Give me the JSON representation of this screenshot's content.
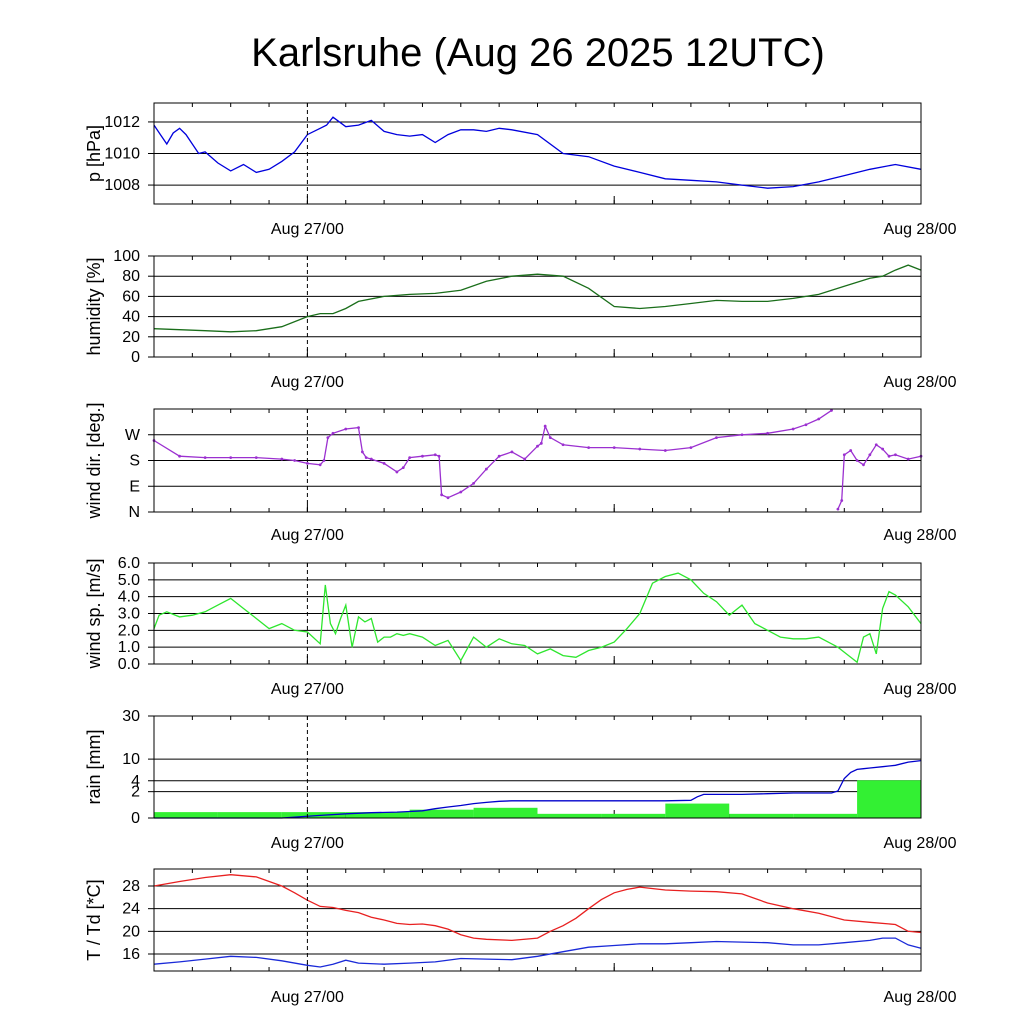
{
  "title": "Karlsruhe (Aug 26 2025 12UTC)",
  "x_ticks": [
    "Aug 27/00",
    "Aug 28/00"
  ],
  "colors": {
    "pressure": "#0000dd",
    "humidity": "#1a6e1a",
    "wind_dir": "#9b30d0",
    "wind_speed": "#2ee62e",
    "rain_bar": "#33f033",
    "rain_line": "#0000cc",
    "temperature": "#e82020",
    "dewpoint": "#1a2ad8"
  },
  "chart_data": [
    {
      "id": "pressure",
      "type": "line",
      "ylabel": "p [hPa]",
      "ylim": [
        1006.8,
        1013.2
      ],
      "yticks": [
        {
          "v": 1008,
          "label": "1008"
        },
        {
          "v": 1010,
          "label": "1010"
        },
        {
          "v": 1012,
          "label": "1012"
        }
      ],
      "series": [
        {
          "name": "pressure",
          "color": "pressure",
          "x": [
            0,
            0.5,
            1,
            1.5,
            2,
            2.5,
            3,
            3.5,
            4,
            5,
            6,
            7,
            8,
            9,
            10,
            11,
            12,
            13,
            13.5,
            14,
            15,
            16,
            17,
            18,
            19,
            20,
            21,
            22,
            23,
            24,
            25,
            26,
            27,
            28,
            30,
            32,
            34,
            36,
            38,
            40,
            42,
            44,
            46,
            48,
            50,
            52,
            54,
            56,
            58,
            60
          ],
          "y": [
            1011.8,
            1011.2,
            1010.6,
            1011.3,
            1011.6,
            1011.2,
            1010.6,
            1010.0,
            1010.1,
            1009.4,
            1008.9,
            1009.3,
            1008.8,
            1009.0,
            1009.5,
            1010.1,
            1011.2,
            1011.6,
            1011.8,
            1012.3,
            1011.7,
            1011.8,
            1012.1,
            1011.4,
            1011.2,
            1011.1,
            1011.2,
            1010.7,
            1011.2,
            1011.5,
            1011.5,
            1011.4,
            1011.6,
            1011.5,
            1011.2,
            1010.0,
            1009.8,
            1009.2,
            1008.8,
            1008.4,
            1008.3,
            1008.2,
            1008.0,
            1007.8,
            1007.9,
            1008.2,
            1008.6,
            1009.0,
            1009.3,
            1009.0
          ]
        }
      ]
    },
    {
      "id": "humidity",
      "type": "line",
      "ylabel": "humidity [%]",
      "ylim": [
        0,
        100
      ],
      "yticks": [
        {
          "v": 0,
          "label": "0"
        },
        {
          "v": 20,
          "label": "20"
        },
        {
          "v": 40,
          "label": "40"
        },
        {
          "v": 60,
          "label": "60"
        },
        {
          "v": 80,
          "label": "80"
        },
        {
          "v": 100,
          "label": "100"
        }
      ],
      "series": [
        {
          "name": "humidity",
          "color": "humidity",
          "x": [
            0,
            2,
            4,
            6,
            8,
            10,
            12,
            13,
            14,
            15,
            16,
            18,
            20,
            22,
            24,
            26,
            28,
            30,
            31,
            32,
            34,
            36,
            38,
            40,
            42,
            44,
            46,
            48,
            50,
            52,
            54,
            56,
            57,
            58,
            59,
            60
          ],
          "y": [
            28,
            27,
            26,
            25,
            26,
            30,
            40,
            43,
            43,
            48,
            55,
            60,
            62,
            63,
            66,
            75,
            80,
            82,
            81,
            80,
            68,
            50,
            48,
            50,
            53,
            56,
            55,
            55,
            58,
            62,
            70,
            78,
            80,
            86,
            91,
            86
          ]
        }
      ]
    },
    {
      "id": "wind_direction",
      "type": "scatter",
      "ylabel": "wind dir. [deg.]",
      "ylim": [
        0,
        360
      ],
      "yticks": [
        {
          "v": 0,
          "label": "N"
        },
        {
          "v": 90,
          "label": "E"
        },
        {
          "v": 180,
          "label": "S"
        },
        {
          "v": 270,
          "label": "W"
        }
      ],
      "series": [
        {
          "name": "wind direction",
          "color": "wind_dir",
          "x": [
            0,
            2,
            4,
            6,
            8,
            10,
            11,
            12,
            13,
            13.3,
            13.6,
            14,
            15,
            16,
            16.3,
            16.6,
            17,
            18,
            19,
            19.5,
            20,
            21,
            22,
            22.3,
            22.5,
            23,
            24,
            25,
            26,
            27,
            28,
            29,
            30,
            30.3,
            30.6,
            31,
            32,
            34,
            36,
            38,
            40,
            42,
            44,
            46,
            48,
            50,
            51,
            52,
            53
          ],
          "y": [
            250,
            195,
            190,
            190,
            190,
            185,
            180,
            170,
            165,
            180,
            260,
            275,
            290,
            295,
            210,
            190,
            185,
            170,
            140,
            155,
            190,
            195,
            200,
            195,
            60,
            50,
            70,
            100,
            150,
            195,
            210,
            185,
            230,
            240,
            300,
            260,
            235,
            225,
            225,
            220,
            215,
            225,
            260,
            270,
            275,
            290,
            305,
            325,
            355
          ]
        },
        {
          "name": "wind direction (wrap)",
          "color": "wind_dir",
          "x": [
            53.5,
            53.8,
            54,
            54.5,
            55,
            55.5,
            56,
            56.5,
            57,
            57.5,
            58,
            59,
            60
          ],
          "y": [
            10,
            40,
            200,
            215,
            180,
            165,
            200,
            235,
            220,
            195,
            200,
            185,
            195
          ]
        }
      ]
    },
    {
      "id": "wind_speed",
      "type": "line",
      "ylabel": "wind sp. [m/s]",
      "ylim": [
        0,
        6
      ],
      "yticks": [
        {
          "v": 0,
          "label": "0.0"
        },
        {
          "v": 1,
          "label": "1.0"
        },
        {
          "v": 2,
          "label": "2.0"
        },
        {
          "v": 3,
          "label": "3.0"
        },
        {
          "v": 4,
          "label": "4.0"
        },
        {
          "v": 5,
          "label": "5.0"
        },
        {
          "v": 6,
          "label": "6.0"
        }
      ],
      "series": [
        {
          "name": "wind speed",
          "color": "wind_speed",
          "x": [
            0,
            0.4,
            1,
            2,
            3,
            4,
            5,
            6,
            7,
            8,
            9,
            10,
            11,
            12,
            13,
            13.4,
            13.8,
            14.2,
            14.6,
            15,
            15.5,
            16,
            16.5,
            17,
            17.5,
            18,
            18.5,
            19,
            19.5,
            20,
            21,
            22,
            23,
            24,
            25,
            26,
            27,
            28,
            29,
            30,
            31,
            32,
            33,
            34,
            35,
            36,
            37,
            38,
            39,
            40,
            41,
            42,
            43,
            44,
            45,
            46,
            47,
            48,
            49,
            50,
            51,
            52,
            53,
            53.5,
            54,
            54.5,
            55,
            55.5,
            56,
            56.5,
            57,
            57.5,
            58,
            59,
            60
          ],
          "y": [
            2.1,
            2.9,
            3.1,
            2.8,
            2.9,
            3.1,
            3.5,
            3.9,
            3.3,
            2.7,
            2.1,
            2.4,
            2.0,
            1.9,
            1.2,
            4.7,
            2.4,
            1.8,
            2.7,
            3.5,
            1.0,
            2.8,
            2.5,
            2.7,
            1.3,
            1.6,
            1.6,
            1.8,
            1.7,
            1.8,
            1.6,
            1.1,
            1.4,
            0.2,
            1.6,
            1.0,
            1.5,
            1.2,
            1.1,
            0.6,
            0.9,
            0.5,
            0.4,
            0.8,
            1.0,
            1.3,
            2.1,
            3.0,
            4.8,
            5.2,
            5.4,
            5.0,
            4.2,
            3.7,
            2.9,
            3.5,
            2.4,
            2.0,
            1.6,
            1.5,
            1.5,
            1.6,
            1.2,
            1.0,
            0.7,
            0.4,
            0.1,
            1.6,
            1.8,
            0.6,
            3.3,
            4.3,
            4.1,
            3.4,
            2.4
          ]
        }
      ]
    },
    {
      "id": "rain",
      "type": "bar",
      "ylabel": "rain [mm]",
      "ytransform": "sqrt",
      "ylim": [
        0,
        30
      ],
      "yticks": [
        {
          "v": 0,
          "label": "0"
        },
        {
          "v": 2,
          "label": "2"
        },
        {
          "v": 4,
          "label": "4"
        },
        {
          "v": 10,
          "label": "10"
        },
        {
          "v": 30,
          "label": "30"
        }
      ],
      "bars": [
        {
          "x0": 0,
          "x1": 5,
          "value": 0.1
        },
        {
          "x0": 5,
          "x1": 10,
          "value": 0.1
        },
        {
          "x0": 10,
          "x1": 15,
          "value": 0.1
        },
        {
          "x0": 15,
          "x1": 20,
          "value": 0.1
        },
        {
          "x0": 20,
          "x1": 25,
          "value": 0.2
        },
        {
          "x0": 25,
          "x1": 30,
          "value": 0.3
        },
        {
          "x0": 30,
          "x1": 35,
          "value": 0.05
        },
        {
          "x0": 35,
          "x1": 40,
          "value": 0.05
        },
        {
          "x0": 40,
          "x1": 45,
          "value": 0.6
        },
        {
          "x0": 45,
          "x1": 50,
          "value": 0.05
        },
        {
          "x0": 50,
          "x1": 55,
          "value": 0.05
        },
        {
          "x0": 55,
          "x1": 60,
          "value": 4.1
        }
      ],
      "series": [
        {
          "name": "accumulated rain",
          "color": "rain_line",
          "x": [
            0,
            10,
            13,
            15,
            17,
            19,
            20,
            21,
            22,
            23,
            24,
            25,
            26,
            27,
            28,
            30,
            32,
            34,
            36,
            38,
            40,
            42,
            42.5,
            43,
            44,
            46,
            48,
            50,
            52,
            53,
            53.5,
            54,
            54.5,
            55,
            55.5,
            56,
            57,
            58,
            59,
            60
          ],
          "y": [
            0,
            0,
            0.02,
            0.05,
            0.08,
            0.1,
            0.12,
            0.15,
            0.25,
            0.35,
            0.45,
            0.6,
            0.7,
            0.8,
            0.85,
            0.85,
            0.85,
            0.85,
            0.85,
            0.85,
            0.85,
            0.9,
            1.3,
            1.6,
            1.6,
            1.6,
            1.7,
            1.8,
            1.8,
            1.8,
            2.1,
            4.5,
            6.0,
            6.8,
            7.0,
            7.2,
            7.6,
            8.0,
            9.0,
            9.5
          ]
        }
      ]
    },
    {
      "id": "temperature",
      "type": "line",
      "ylabel": "T / Td [*C]",
      "ylim": [
        13,
        31
      ],
      "yticks": [
        {
          "v": 16,
          "label": "16"
        },
        {
          "v": 20,
          "label": "20"
        },
        {
          "v": 24,
          "label": "24"
        },
        {
          "v": 28,
          "label": "28"
        }
      ],
      "series": [
        {
          "name": "temperature",
          "color": "temperature",
          "x": [
            0,
            2,
            4,
            6,
            8,
            10,
            11,
            12,
            13,
            14,
            15,
            16,
            17,
            18,
            19,
            20,
            21,
            22,
            23,
            24,
            25,
            26,
            28,
            30,
            31,
            32,
            33,
            34,
            35,
            36,
            37,
            38,
            40,
            42,
            44,
            46,
            48,
            50,
            52,
            54,
            56,
            58,
            59,
            60
          ],
          "y": [
            28.0,
            28.8,
            29.5,
            30.0,
            29.6,
            28.0,
            26.8,
            25.5,
            24.4,
            24.2,
            23.7,
            23.3,
            22.5,
            22.0,
            21.4,
            21.2,
            21.3,
            21.0,
            20.4,
            19.4,
            18.8,
            18.6,
            18.4,
            18.8,
            20.0,
            21.0,
            22.3,
            24.0,
            25.6,
            26.8,
            27.4,
            27.8,
            27.3,
            27.1,
            27.0,
            26.6,
            25.0,
            24.0,
            23.2,
            22.0,
            21.6,
            21.2,
            20.0,
            19.8
          ]
        },
        {
          "name": "dew point",
          "color": "dewpoint",
          "x": [
            0,
            2,
            4,
            6,
            8,
            10,
            12,
            13,
            14,
            15,
            16,
            18,
            20,
            22,
            24,
            26,
            28,
            30,
            32,
            34,
            36,
            38,
            40,
            42,
            44,
            46,
            48,
            50,
            52,
            54,
            56,
            57,
            58,
            59,
            60
          ],
          "y": [
            14.2,
            14.6,
            15.1,
            15.6,
            15.4,
            14.8,
            14.0,
            13.7,
            14.2,
            14.9,
            14.4,
            14.2,
            14.4,
            14.6,
            15.2,
            15.1,
            15.0,
            15.6,
            16.4,
            17.2,
            17.5,
            17.8,
            17.8,
            18.0,
            18.2,
            18.1,
            18.0,
            17.6,
            17.6,
            18.0,
            18.4,
            18.8,
            18.8,
            17.6,
            17.0
          ]
        }
      ]
    }
  ]
}
